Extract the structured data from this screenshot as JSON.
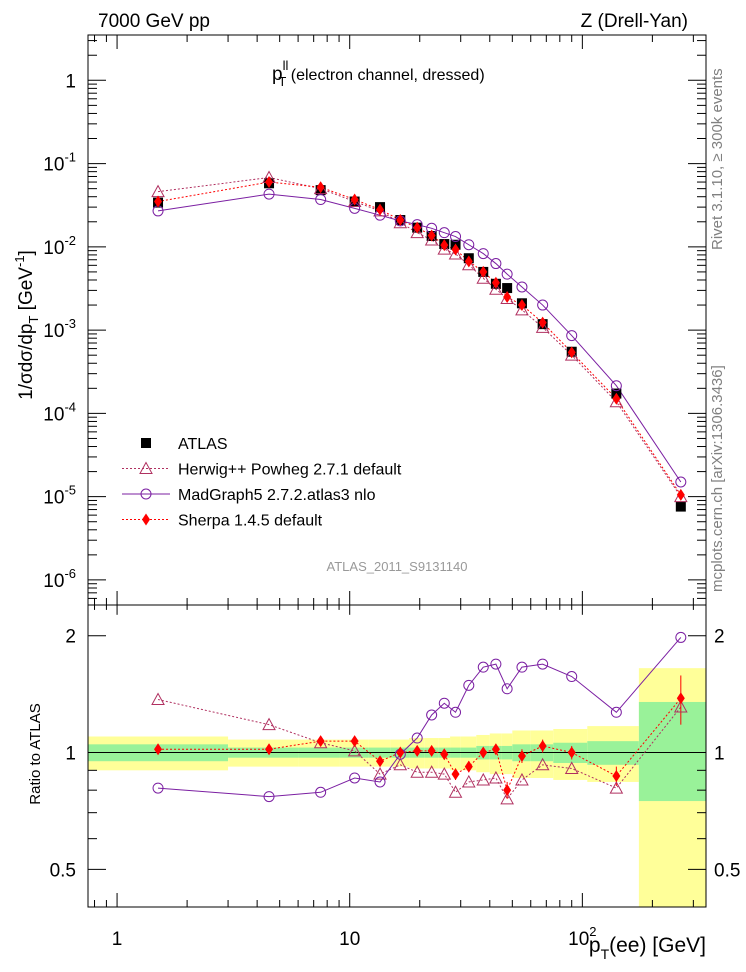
{
  "header": {
    "left": "7000 GeV pp",
    "right": "Z (Drell-Yan)",
    "side_top": "Rivet 3.1.10, ≥ 300k events",
    "side_bottom": "mcplots.cern.ch [arXiv:1306.3436]",
    "analysis": "ATLAS_2011_S9131140"
  },
  "colors": {
    "atlas": "#000000",
    "herwig": "#b03060",
    "madgraph": "#7b1fa2",
    "sherpa": "#ff0000",
    "band_inner": "#99f299",
    "band_outer": "#ffff99"
  },
  "chart_data": [
    {
      "type": "scatter",
      "title": "p_T^{ll} (electron channel, dressed)",
      "title_main": "p",
      "title_sub": "T",
      "title_sup": "ll",
      "title_rest": " (electron channel, dressed)",
      "ylabel": "1/σdσ/dp_T [GeV^-1]",
      "yscale": "log",
      "xscale": "log",
      "xlim": [
        0.75,
        340
      ],
      "ylim": [
        5e-07,
        3.5
      ],
      "ytick_labels": [
        "10^-6",
        "10^-5",
        "10^-4",
        "10^-3",
        "10^-2",
        "10^-1",
        "1"
      ],
      "legend_position": "lower-left",
      "x": [
        1.5,
        4.5,
        7.5,
        10.5,
        13.5,
        16.5,
        19.5,
        22.5,
        25.5,
        28.5,
        32.5,
        37.5,
        42.5,
        47.5,
        55.0,
        67.5,
        90.0,
        140.0,
        265.0
      ],
      "series": [
        {
          "name": "ATLAS",
          "values": [
            0.034,
            0.058,
            0.048,
            0.035,
            0.03,
            0.021,
            0.017,
            0.0135,
            0.0108,
            0.0106,
            0.0073,
            0.005,
            0.0036,
            0.0032,
            0.0021,
            0.00118,
            0.00055,
            0.000173,
            7.6e-06
          ]
        },
        {
          "name": "Herwig++ Powheg 2.7.1 default",
          "values": [
            0.046,
            0.068,
            0.05,
            0.035,
            0.027,
            0.0195,
            0.0148,
            0.0121,
            0.0094,
            0.0082,
            0.0061,
            0.0042,
            0.0031,
            0.0024,
            0.00175,
            0.00108,
            0.0005,
            0.000138,
            1e-05
          ]
        },
        {
          "name": "MadGraph5 2.7.2.atlas3 nlo",
          "values": [
            0.027,
            0.043,
            0.037,
            0.029,
            0.024,
            0.0205,
            0.0185,
            0.0167,
            0.0148,
            0.0133,
            0.0106,
            0.0083,
            0.0063,
            0.0047,
            0.0033,
            0.002,
            0.00086,
            0.000215,
            1.5e-05
          ]
        },
        {
          "name": "Sherpa 1.4.5 default",
          "values": [
            0.035,
            0.06,
            0.052,
            0.037,
            0.028,
            0.021,
            0.017,
            0.0137,
            0.0105,
            0.0093,
            0.0067,
            0.005,
            0.0037,
            0.0025,
            0.002,
            0.00123,
            0.00054,
            0.00015,
            1.05e-05
          ]
        }
      ]
    },
    {
      "type": "scatter",
      "xlabel": "p_T(ee) [GeV]",
      "ylabel": "Ratio to ATLAS",
      "xscale": "log",
      "yscale": "log",
      "xlim": [
        0.75,
        340
      ],
      "ylim": [
        0.4,
        2.4
      ],
      "yticks": [
        0.5,
        1,
        2
      ],
      "xtick_labels": [
        "1",
        "10",
        "10^2"
      ],
      "x": [
        1.5,
        4.5,
        7.5,
        10.5,
        13.5,
        16.5,
        19.5,
        22.5,
        25.5,
        28.5,
        32.5,
        37.5,
        42.5,
        47.5,
        55.0,
        67.5,
        90.0,
        140.0,
        265.0
      ],
      "series": [
        {
          "name": "Herwig++ Powheg 2.7.1 default",
          "values": [
            1.37,
            1.18,
            1.06,
            1.01,
            0.88,
            0.93,
            0.89,
            0.89,
            0.88,
            0.79,
            0.84,
            0.85,
            0.86,
            0.76,
            0.85,
            0.93,
            0.91,
            0.81,
            1.31
          ]
        },
        {
          "name": "MadGraph5 2.7.2.atlas3 nlo",
          "values": [
            0.81,
            0.77,
            0.79,
            0.86,
            0.84,
            0.99,
            1.09,
            1.25,
            1.34,
            1.27,
            1.49,
            1.66,
            1.69,
            1.46,
            1.66,
            1.69,
            1.57,
            1.27,
            1.98
          ]
        },
        {
          "name": "Sherpa 1.4.5 default",
          "values": [
            1.02,
            1.02,
            1.07,
            1.07,
            0.95,
            1.0,
            1.01,
            1.01,
            0.99,
            0.88,
            0.92,
            1.0,
            1.02,
            0.8,
            0.98,
            1.04,
            1.0,
            0.87,
            1.38
          ]
        },
        {
          "name": "Sherpa 1.4.5 default error",
          "err": [
            0.03,
            0.02,
            0.03,
            0.03,
            0.02,
            0.02,
            0.02,
            0.03,
            0.03,
            0.03,
            0.03,
            0.03,
            0.03,
            0.04,
            0.04,
            0.04,
            0.04,
            0.05,
            0.2
          ]
        }
      ],
      "bands": {
        "edges": [
          0.75,
          3,
          6,
          9,
          12,
          15,
          18,
          21,
          24,
          27,
          30,
          35,
          40,
          45,
          50,
          60,
          75,
          105,
          175,
          340
        ],
        "inner_lo": [
          0.95,
          0.97,
          0.97,
          0.97,
          0.97,
          0.97,
          0.97,
          0.97,
          0.97,
          0.97,
          0.97,
          0.96,
          0.96,
          0.96,
          0.95,
          0.95,
          0.94,
          0.93,
          0.75
        ],
        "inner_hi": [
          1.05,
          1.03,
          1.03,
          1.03,
          1.03,
          1.03,
          1.03,
          1.03,
          1.03,
          1.03,
          1.03,
          1.04,
          1.04,
          1.04,
          1.05,
          1.05,
          1.06,
          1.07,
          1.35
        ],
        "outer_lo": [
          0.9,
          0.92,
          0.92,
          0.92,
          0.92,
          0.92,
          0.91,
          0.91,
          0.91,
          0.9,
          0.9,
          0.89,
          0.88,
          0.88,
          0.86,
          0.86,
          0.85,
          0.84,
          0.4
        ],
        "outer_hi": [
          1.1,
          1.08,
          1.08,
          1.08,
          1.08,
          1.08,
          1.09,
          1.09,
          1.09,
          1.1,
          1.1,
          1.11,
          1.12,
          1.12,
          1.14,
          1.14,
          1.15,
          1.17,
          1.65
        ]
      }
    }
  ]
}
